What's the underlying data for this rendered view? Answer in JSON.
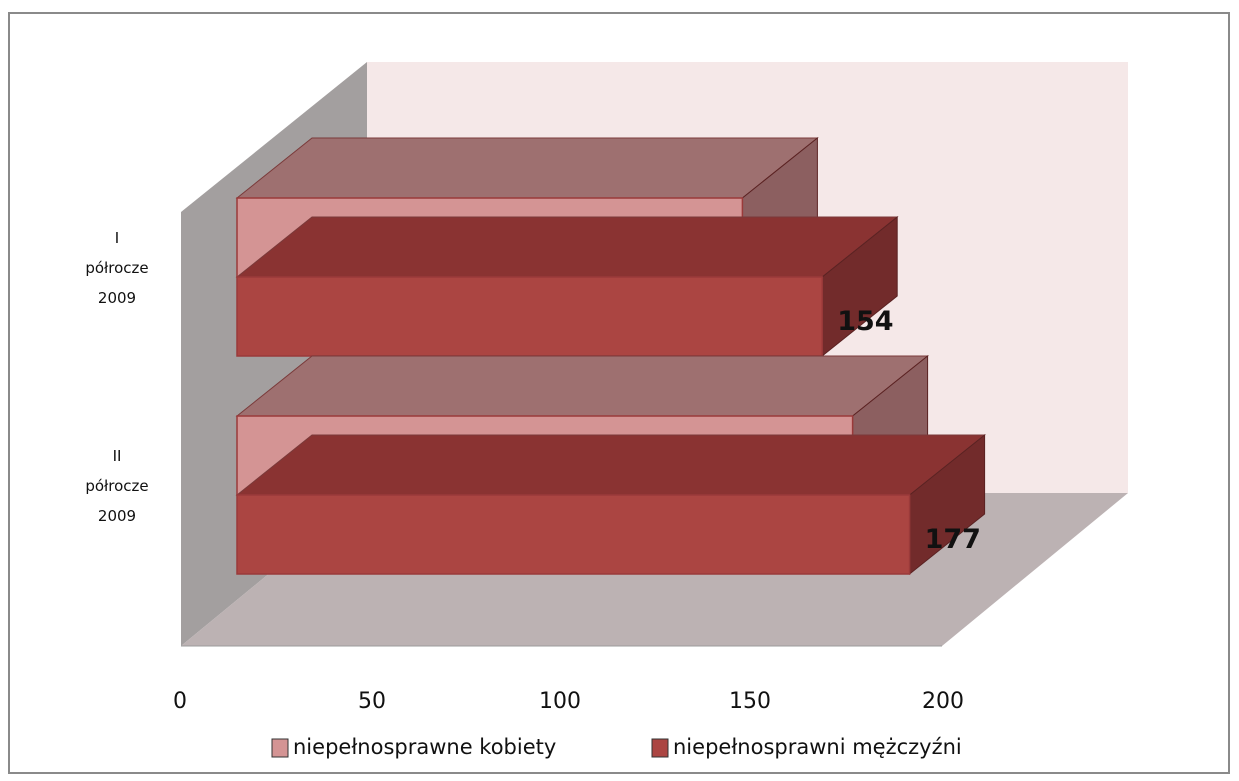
{
  "chart_data": {
    "type": "bar",
    "orientation": "horizontal",
    "style": "3d",
    "categories": [
      "I\npółrocze\n2009",
      "II\npółrocze\n2009"
    ],
    "series": [
      {
        "name": "niepełnosprawne kobiety",
        "values": [
          133,
          162
        ],
        "color": "#d49494"
      },
      {
        "name": "niepełnosprawni mężczyźni",
        "values": [
          154,
          177
        ],
        "color": "#ab4542"
      }
    ],
    "xticks": [
      "0",
      "50",
      "100",
      "150",
      "200"
    ],
    "xlim": [
      0,
      200
    ],
    "legend_position": "bottom",
    "title": "",
    "xlabel": "",
    "ylabel": ""
  }
}
